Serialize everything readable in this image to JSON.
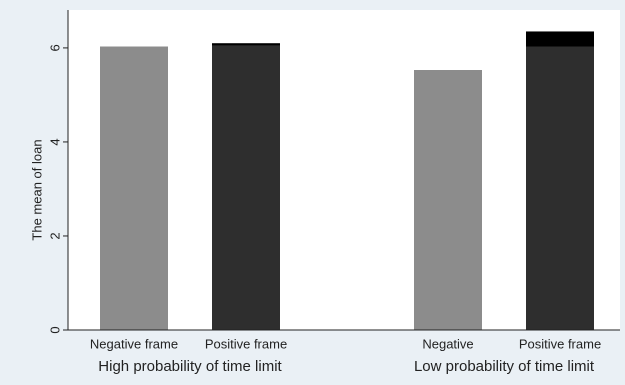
{
  "chart_data": {
    "type": "bar",
    "y_label": "The mean of loan",
    "categories": [
      "Negative frame",
      "Positive frame",
      "Negative",
      "Positive frame"
    ],
    "groups": [
      {
        "label": "High probability of time limit",
        "members": [
          0,
          1
        ]
      },
      {
        "label": "Low probability of time limit",
        "members": [
          2,
          3
        ]
      }
    ],
    "series": [
      {
        "values": [
          6.03,
          6.05,
          5.53,
          6.03
        ],
        "colors": [
          "#8c8c8c",
          "#2e2e2e",
          "#8c8c8c",
          "#2e2e2e"
        ]
      },
      {
        "values": [
          0,
          0.05,
          0,
          0.32
        ],
        "color": "#000000"
      }
    ],
    "stacked": true,
    "ylim": [
      0,
      6.7
    ],
    "yticks": [
      0,
      2,
      4,
      6
    ]
  }
}
